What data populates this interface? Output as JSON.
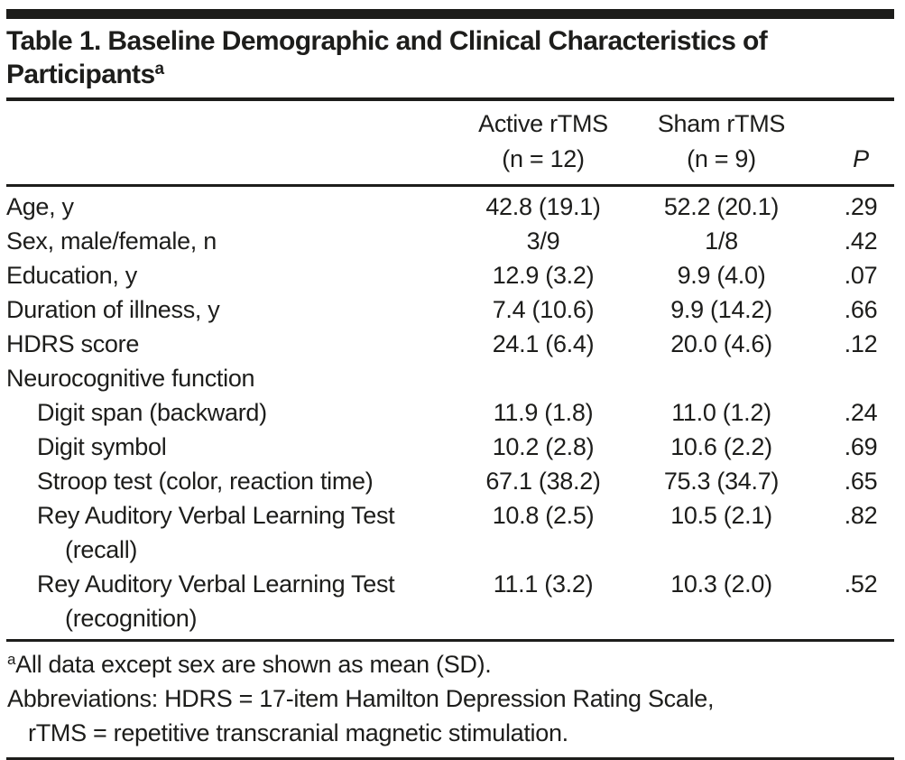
{
  "table": {
    "title": "Table 1. Baseline Demographic and Clinical Characteristics of Participants",
    "title_superscript": "a",
    "header": {
      "active_line1": "Active rTMS",
      "active_line2": "(n = 12)",
      "sham_line1": "Sham rTMS",
      "sham_line2": "(n = 9)",
      "p_label": "P"
    },
    "rows": [
      {
        "label": "Age, y",
        "active": "42.8 (19.1)",
        "sham": "52.2 (20.1)",
        "p": ".29"
      },
      {
        "label": "Sex, male/female, n",
        "active": "3/9",
        "sham": "1/8",
        "p": ".42"
      },
      {
        "label": "Education, y",
        "active": "12.9 (3.2)",
        "sham": "9.9 (4.0)",
        "p": ".07"
      },
      {
        "label": "Duration of illness, y",
        "active": "7.4 (10.6)",
        "sham": "9.9 (14.2)",
        "p": ".66"
      },
      {
        "label": "HDRS score",
        "active": "24.1 (6.4)",
        "sham": "20.0 (4.6)",
        "p": ".12"
      },
      {
        "label": "Neurocognitive function",
        "active": "",
        "sham": "",
        "p": ""
      },
      {
        "label": "Digit span (backward)",
        "active": "11.9 (1.8)",
        "sham": "11.0 (1.2)",
        "p": ".24"
      },
      {
        "label": "Digit symbol",
        "active": "10.2 (2.8)",
        "sham": "10.6 (2.2)",
        "p": ".69"
      },
      {
        "label": "Stroop test (color, reaction time)",
        "active": "67.1 (38.2)",
        "sham": "75.3 (34.7)",
        "p": ".65"
      },
      {
        "label": "Rey Auditory Verbal Learning Test",
        "label2": "(recall)",
        "active": "10.8 (2.5)",
        "sham": "10.5 (2.1)",
        "p": ".82"
      },
      {
        "label": "Rey Auditory Verbal Learning Test",
        "label2": "(recognition)",
        "active": "11.1 (3.2)",
        "sham": "10.3 (2.0)",
        "p": ".52"
      }
    ],
    "footnotes": {
      "note1_marker": "a",
      "note1_text": "All data except sex are shown as mean (SD).",
      "note2_line1": "Abbreviations: HDRS = 17-item Hamilton Depression Rating Scale,",
      "note2_line2": "rTMS = repetitive transcranial magnetic stimulation."
    },
    "colors": {
      "text": "#1d1d1b",
      "rule": "#1d1d1b",
      "background": "#ffffff"
    }
  }
}
